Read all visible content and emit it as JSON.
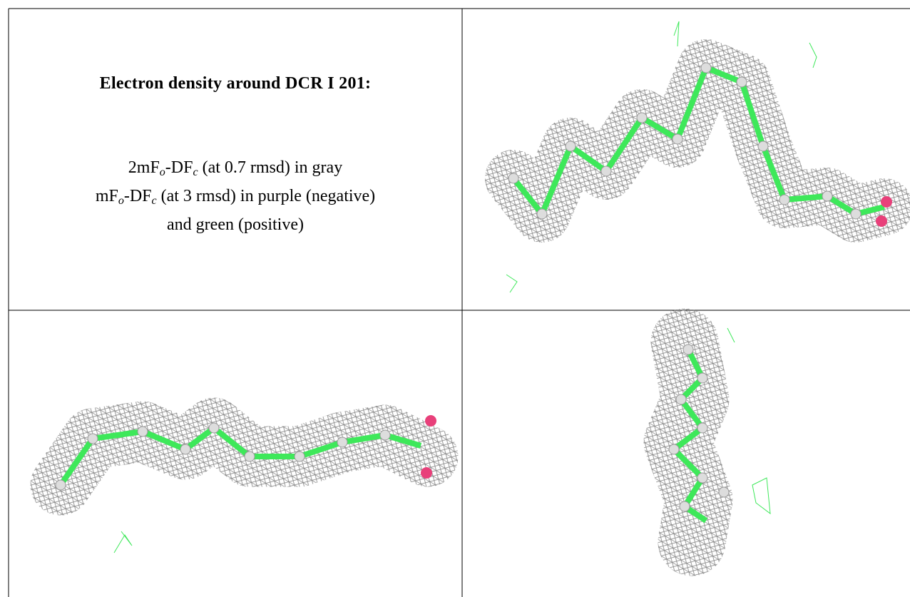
{
  "header": {
    "title": "Electron density around DCR I 201:"
  },
  "lines": [
    [
      "2mF",
      "o",
      "-DF",
      "c",
      " (at 0.7 rmsd) in gray"
    ],
    [
      "mF",
      "o",
      "-DF",
      "c",
      " (at 3 rmsd) in purple (negative)"
    ],
    [
      "and green (positive)"
    ]
  ]
}
